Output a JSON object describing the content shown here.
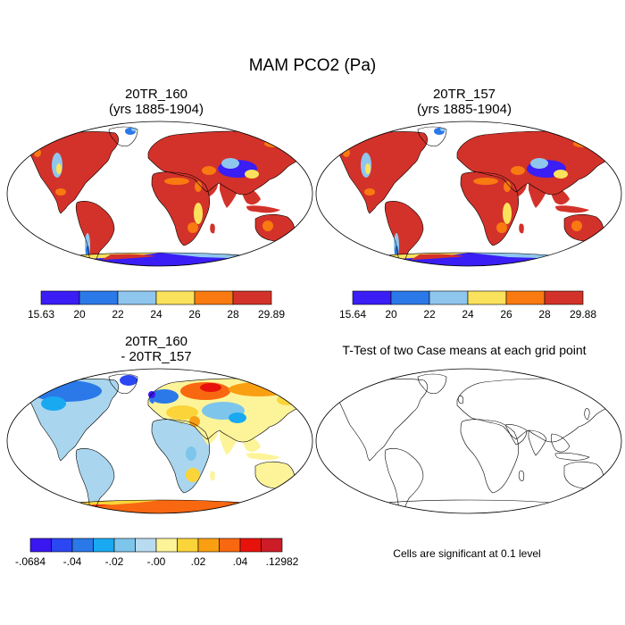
{
  "figure": {
    "title": "MAM PCO2 (Pa)"
  },
  "panels": [
    {
      "id": "p1",
      "title_line1": "20TR_160",
      "title_line2": "(yrs 1885-1904)",
      "fill": "absolute"
    },
    {
      "id": "p2",
      "title_line1": "20TR_157",
      "title_line2": "(yrs 1885-1904)",
      "fill": "absolute"
    },
    {
      "id": "p3",
      "title_line1": "20TR_160",
      "title_line2": "- 20TR_157",
      "fill": "difference"
    },
    {
      "id": "p4",
      "title_line1": "T-Test of two Case means at each grid point",
      "title_line2": "",
      "fill": "ttest"
    }
  ],
  "colorbars": {
    "cb1": {
      "colors": [
        "#3a1ef5",
        "#2b78e8",
        "#8fc6ee",
        "#fbe25c",
        "#f97a10",
        "#d3322a"
      ],
      "labels": [
        "15.63",
        "20",
        "22",
        "24",
        "26",
        "28",
        "29.89"
      ]
    },
    "cb2": {
      "colors": [
        "#3a1ef5",
        "#2b78e8",
        "#8fc6ee",
        "#fbe25c",
        "#f97a10",
        "#d3322a"
      ],
      "labels": [
        "15.64",
        "20",
        "22",
        "24",
        "26",
        "28",
        "29.88"
      ]
    },
    "cb3": {
      "colors": [
        "#3a17f0",
        "#2a47f2",
        "#2b79e9",
        "#19a9f1",
        "#7ec5ec",
        "#b8dbf0",
        "#fdf49a",
        "#fbd43a",
        "#fa9f12",
        "#f86810",
        "#e8120c",
        "#cc1c28"
      ],
      "labels": [
        ".0684",
        "-.04",
        "-.02",
        "-.00",
        ".02",
        ".04",
        ".12982"
      ],
      "label_prefix_first": "-"
    }
  },
  "significance_note": "Cells are significant at 0.1 level",
  "colors": {
    "red": "#d3322a",
    "orange": "#f97a10",
    "yellow": "#fbe25c",
    "lightblue": "#8fc6ee",
    "blue": "#2b78e8",
    "violet": "#3a1ef5",
    "palelightblue": "#a9d6ee",
    "paleyellow": "#fdf49a"
  }
}
